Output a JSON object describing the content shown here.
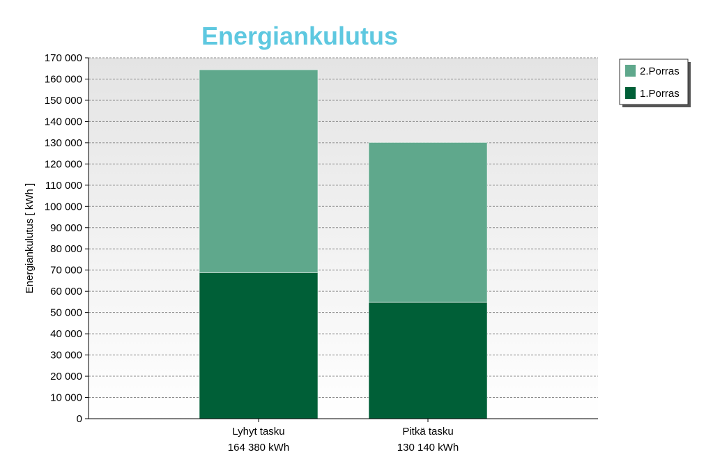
{
  "chart_data": {
    "type": "bar",
    "stacked": true,
    "title": "Energiankulutus",
    "ylabel": "Energiankulutus [ kWh ]",
    "xlabel": "",
    "ylim": [
      0,
      170000
    ],
    "ytick_step": 10000,
    "yticks": [
      "0",
      "10 000",
      "20 000",
      "30 000",
      "40 000",
      "50 000",
      "60 000",
      "70 000",
      "80 000",
      "90 000",
      "100 000",
      "110 000",
      "120 000",
      "130 000",
      "140 000",
      "150 000",
      "160 000",
      "170 000"
    ],
    "categories": [
      "Lyhyt tasku",
      "Pitkä tasku"
    ],
    "category_sublabels": [
      "164 380 kWh",
      "130 140 kWh"
    ],
    "series": [
      {
        "name": "1.Porras",
        "values": [
          68800,
          54800
        ],
        "color": "#005f37"
      },
      {
        "name": "2.Porras",
        "values": [
          95580,
          75340
        ],
        "color": "#5fa88c"
      }
    ],
    "legend_order": [
      "2.Porras",
      "1.Porras"
    ],
    "legend_placement": "top-right",
    "grid": true,
    "colors": {
      "title": "#5ec8e0",
      "plot_bg_top": "#e4e4e4",
      "plot_bg_bottom": "#ffffff"
    }
  }
}
